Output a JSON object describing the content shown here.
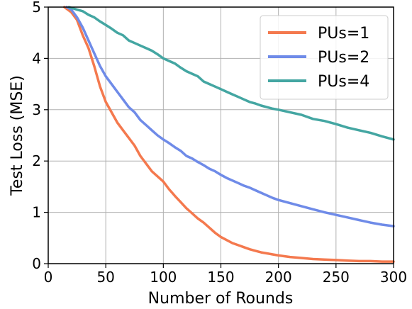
{
  "chart_data": {
    "type": "line",
    "xlabel": "Number of Rounds",
    "ylabel": "Test Loss (MSE)",
    "xlim": [
      0,
      300
    ],
    "ylim": [
      0,
      5
    ],
    "xticks": [
      0,
      50,
      100,
      150,
      200,
      250,
      300
    ],
    "yticks": [
      0,
      1,
      2,
      3,
      4,
      5
    ],
    "xtick_labels": [
      "0",
      "50",
      "100",
      "150",
      "200",
      "250",
      "300"
    ],
    "ytick_labels": [
      "0",
      "1",
      "2",
      "3",
      "4",
      "5"
    ],
    "grid": true,
    "legend_position": "top-right",
    "series": [
      {
        "name": "PUs=1",
        "color": "#f4794e",
        "x": [
          14,
          20,
          25,
          30,
          35,
          40,
          45,
          50,
          55,
          60,
          65,
          70,
          75,
          80,
          85,
          90,
          95,
          100,
          105,
          110,
          115,
          120,
          125,
          130,
          135,
          140,
          145,
          150,
          155,
          160,
          165,
          170,
          175,
          180,
          185,
          190,
          195,
          200,
          210,
          220,
          230,
          240,
          250,
          260,
          270,
          280,
          290,
          300
        ],
        "y": [
          5.0,
          4.9,
          4.75,
          4.45,
          4.2,
          3.85,
          3.45,
          3.15,
          2.95,
          2.75,
          2.6,
          2.45,
          2.3,
          2.1,
          1.95,
          1.8,
          1.7,
          1.6,
          1.45,
          1.32,
          1.2,
          1.08,
          0.98,
          0.88,
          0.8,
          0.7,
          0.6,
          0.52,
          0.46,
          0.4,
          0.36,
          0.32,
          0.28,
          0.25,
          0.22,
          0.2,
          0.18,
          0.16,
          0.13,
          0.11,
          0.09,
          0.08,
          0.07,
          0.06,
          0.05,
          0.05,
          0.04,
          0.04
        ]
      },
      {
        "name": "PUs=2",
        "color": "#6f8be8",
        "x": [
          16,
          20,
          25,
          30,
          35,
          40,
          45,
          50,
          55,
          60,
          65,
          70,
          75,
          80,
          85,
          90,
          95,
          100,
          105,
          110,
          115,
          120,
          125,
          130,
          135,
          140,
          145,
          150,
          155,
          160,
          165,
          170,
          175,
          180,
          185,
          190,
          195,
          200,
          210,
          220,
          230,
          240,
          250,
          260,
          270,
          280,
          290,
          300
        ],
        "y": [
          5.0,
          4.95,
          4.8,
          4.6,
          4.35,
          4.1,
          3.85,
          3.65,
          3.5,
          3.35,
          3.2,
          3.05,
          2.95,
          2.8,
          2.7,
          2.6,
          2.5,
          2.42,
          2.35,
          2.27,
          2.2,
          2.1,
          2.05,
          1.98,
          1.92,
          1.85,
          1.8,
          1.73,
          1.67,
          1.62,
          1.57,
          1.52,
          1.48,
          1.43,
          1.38,
          1.33,
          1.28,
          1.24,
          1.18,
          1.12,
          1.06,
          1.0,
          0.95,
          0.9,
          0.85,
          0.8,
          0.76,
          0.73
        ]
      },
      {
        "name": "PUs=4",
        "color": "#44a6a2",
        "x": [
          18,
          25,
          30,
          35,
          40,
          45,
          50,
          55,
          60,
          65,
          70,
          75,
          80,
          85,
          90,
          95,
          100,
          105,
          110,
          115,
          120,
          125,
          130,
          135,
          140,
          145,
          150,
          155,
          160,
          165,
          170,
          175,
          180,
          185,
          190,
          195,
          200,
          210,
          220,
          230,
          240,
          250,
          260,
          270,
          280,
          290,
          300
        ],
        "y": [
          5.0,
          4.95,
          4.92,
          4.85,
          4.8,
          4.72,
          4.65,
          4.58,
          4.5,
          4.45,
          4.35,
          4.3,
          4.25,
          4.2,
          4.15,
          4.08,
          4.0,
          3.95,
          3.9,
          3.82,
          3.75,
          3.7,
          3.65,
          3.55,
          3.5,
          3.45,
          3.4,
          3.35,
          3.3,
          3.25,
          3.2,
          3.15,
          3.12,
          3.08,
          3.05,
          3.02,
          3.0,
          2.95,
          2.9,
          2.82,
          2.78,
          2.72,
          2.65,
          2.6,
          2.55,
          2.48,
          2.42
        ]
      }
    ]
  }
}
